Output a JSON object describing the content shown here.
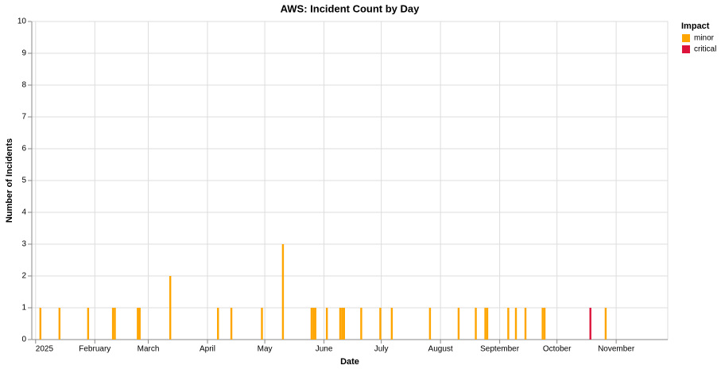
{
  "chart_data": {
    "type": "stacked-bar",
    "title": "AWS: Incident Count by Day",
    "x_label": "Date",
    "y_label": "Number of Incidents",
    "legend_title": "Impact",
    "legend_position": "right",
    "x": [
      2,
      12,
      27,
      40,
      41,
      53,
      54,
      70,
      95,
      102,
      118,
      129,
      144,
      145,
      146,
      152,
      159,
      160,
      161,
      170,
      180,
      186,
      206,
      221,
      230,
      235,
      236,
      247,
      251,
      256,
      265,
      266,
      290,
      298
    ],
    "series": [
      {
        "name": "minor",
        "color": "#ffa500",
        "values": [
          1,
          1,
          1,
          1,
          1,
          1,
          1,
          2,
          1,
          1,
          1,
          3,
          1,
          1,
          1,
          1,
          1,
          1,
          1,
          1,
          1,
          1,
          1,
          1,
          1,
          1,
          1,
          1,
          1,
          1,
          1,
          1,
          null,
          1
        ]
      },
      {
        "name": "critical",
        "color": "#dc143c",
        "values": [
          null,
          null,
          null,
          null,
          null,
          null,
          null,
          null,
          null,
          null,
          null,
          null,
          null,
          null,
          null,
          null,
          null,
          null,
          null,
          null,
          null,
          null,
          null,
          null,
          null,
          null,
          null,
          null,
          null,
          null,
          null,
          null,
          1,
          null
        ]
      }
    ],
    "xlim": [
      -2,
      331
    ],
    "xticks": [
      {
        "value": 0,
        "label": "2025"
      },
      {
        "value": 31,
        "label": "February"
      },
      {
        "value": 59,
        "label": "March"
      },
      {
        "value": 90,
        "label": "April"
      },
      {
        "value": 120,
        "label": "May"
      },
      {
        "value": 151,
        "label": "June"
      },
      {
        "value": 181,
        "label": "July"
      },
      {
        "value": 212,
        "label": "August"
      },
      {
        "value": 243,
        "label": "September"
      },
      {
        "value": 273,
        "label": "October"
      },
      {
        "value": 304,
        "label": "November"
      }
    ],
    "ylim": [
      0,
      10
    ],
    "yticks": [
      0,
      1,
      2,
      3,
      4,
      5,
      6,
      7,
      8,
      9,
      10
    ],
    "grid": true
  }
}
